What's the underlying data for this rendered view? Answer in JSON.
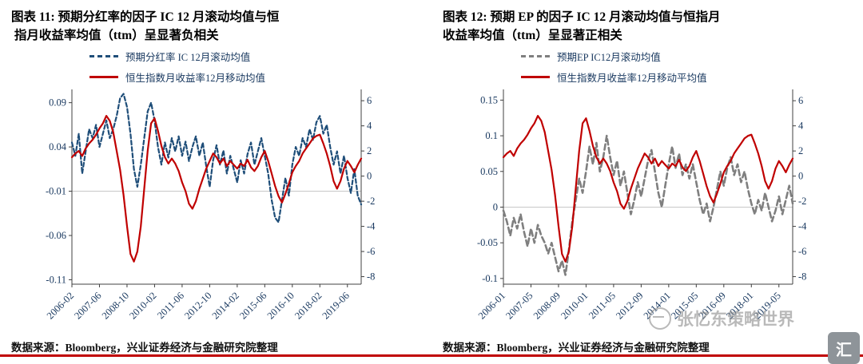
{
  "page": {
    "background": "#ffffff",
    "rule_color": "#c00000"
  },
  "watermark": {
    "text": "张忆东策略世界"
  },
  "logo": {
    "glyph": "汇"
  },
  "chart_data": [
    {
      "type": "line",
      "title": "图表 11: 预期分红率的因子 IC 12 月滚动均值与恒\n 指月收益率均值（ttm）呈显著负相关",
      "source": "数据来源：Bloomberg，兴业证券经济与金融研究院整理",
      "x_tick_labels": [
        "2006-02",
        "2007-06",
        "2008-10",
        "2010-02",
        "2011-06",
        "2012-10",
        "2014-02",
        "2015-06",
        "2016-10",
        "2018-02",
        "2019-06"
      ],
      "x_tick_every": 8,
      "left_axis": {
        "min": -0.115,
        "max": 0.105,
        "ticks": [
          "0.09",
          "0.04",
          "-0.01",
          "-0.06",
          "-0.11"
        ]
      },
      "right_axis": {
        "min": -8.6,
        "max": 6.9,
        "ticks": [
          "6",
          "4",
          "2",
          "0",
          "-2",
          "-4",
          "-6",
          "-8"
        ]
      },
      "baseline_left": -0.01,
      "legend_position": "top",
      "grid": "single-horizontal",
      "series": [
        {
          "name": "预期分红率 IC 12月滚动均值",
          "axis": "left",
          "color": "#1f4e79",
          "dash": "5 3",
          "width": 2.2,
          "values": [
            0.045,
            0.03,
            0.055,
            0.01,
            0.035,
            0.06,
            0.05,
            0.065,
            0.04,
            0.055,
            0.07,
            0.05,
            0.06,
            0.075,
            0.095,
            0.1,
            0.085,
            0.055,
            0.015,
            -0.005,
            0.02,
            0.05,
            0.08,
            0.09,
            0.07,
            0.04,
            0.02,
            0.045,
            0.028,
            0.05,
            0.035,
            0.052,
            0.03,
            0.046,
            0.024,
            0.04,
            0.052,
            0.03,
            0.045,
            0.018,
            -0.005,
            0.025,
            0.042,
            0.02,
            0.036,
            0.01,
            0.03,
            0.015,
            0.0,
            0.025,
            0.01,
            0.032,
            0.045,
            0.02,
            0.035,
            0.05,
            0.03,
            0.01,
            -0.02,
            -0.04,
            -0.045,
            -0.02,
            0.005,
            -0.015,
            0.02,
            0.04,
            0.03,
            0.05,
            0.04,
            0.06,
            0.048,
            0.068,
            0.075,
            0.055,
            0.065,
            0.04,
            0.02,
            0.035,
            0.01,
            0.03,
            0.005,
            -0.012,
            0.015,
            -0.015,
            -0.025
          ]
        },
        {
          "name": "恒生指数月收益率12月移动均值",
          "axis": "right",
          "color": "#c00000",
          "dash": "",
          "width": 2.2,
          "values": [
            1.5,
            1.8,
            2.0,
            1.6,
            2.2,
            2.6,
            2.9,
            3.3,
            3.8,
            4.2,
            4.8,
            4.4,
            3.5,
            2.0,
            0.5,
            -1.5,
            -4.0,
            -6.2,
            -6.8,
            -6.0,
            -4.0,
            -1.0,
            2.0,
            4.2,
            4.6,
            3.6,
            2.4,
            1.5,
            1.0,
            1.4,
            1.0,
            0.4,
            -0.5,
            -1.2,
            -2.2,
            -2.6,
            -2.0,
            -1.0,
            -0.2,
            0.6,
            1.2,
            1.8,
            1.5,
            1.0,
            1.4,
            0.8,
            1.2,
            0.9,
            0.6,
            1.0,
            0.8,
            1.3,
            0.7,
            0.4,
            0.8,
            1.5,
            2.0,
            1.2,
            0.2,
            -0.8,
            -1.6,
            -2.1,
            -1.4,
            -0.6,
            0.3,
            0.8,
            1.2,
            1.8,
            2.2,
            2.6,
            3.0,
            3.2,
            3.3,
            2.6,
            1.8,
            0.8,
            -0.4,
            -1.0,
            -0.4,
            0.6,
            1.2,
            0.8,
            0.3,
            0.9,
            1.4
          ]
        }
      ]
    },
    {
      "type": "line",
      "title": "图表 12: 预期 EP 的因子 IC 12 月滚动均值与恒指月\n收益率均值（ttm）呈显著正相关",
      "source": "数据来源：Bloomberg，兴业证券经济与金融研究院整理",
      "x_tick_labels": [
        "2006-01",
        "2007-05",
        "2008-09",
        "2010-01",
        "2011-05",
        "2012-09",
        "2014-01",
        "2015-05",
        "2016-09",
        "2018-01",
        "2019-05"
      ],
      "x_tick_every": 8,
      "left_axis": {
        "min": -0.108,
        "max": 0.165,
        "ticks": [
          "0.15",
          "0.1",
          "0.05",
          "0",
          "-0.05",
          "-0.1"
        ]
      },
      "right_axis": {
        "min": -8.6,
        "max": 6.9,
        "ticks": [
          "6",
          "4",
          "2",
          "0",
          "-2",
          "-4",
          "-6",
          "-8"
        ]
      },
      "baseline_left": 0,
      "legend_position": "top",
      "grid": "single-horizontal",
      "series": [
        {
          "name": "预期EP IC12月滚动均值",
          "axis": "left",
          "color": "#7f7f7f",
          "dash": "7 4",
          "width": 2.6,
          "values": [
            -0.005,
            -0.02,
            -0.04,
            -0.015,
            -0.03,
            -0.01,
            -0.035,
            -0.055,
            -0.03,
            -0.05,
            -0.025,
            -0.04,
            -0.05,
            -0.065,
            -0.05,
            -0.07,
            -0.09,
            -0.075,
            -0.095,
            -0.06,
            -0.02,
            0.01,
            0.04,
            0.02,
            0.05,
            0.085,
            0.06,
            0.09,
            0.05,
            0.07,
            0.1,
            0.07,
            0.045,
            0.065,
            0.03,
            0.05,
            0.02,
            -0.01,
            0.01,
            0.035,
            0.015,
            0.04,
            0.065,
            0.08,
            0.05,
            0.02,
            0.0,
            0.03,
            0.06,
            0.085,
            0.055,
            0.075,
            0.045,
            0.06,
            0.04,
            0.06,
            0.035,
            0.01,
            -0.01,
            0.005,
            -0.02,
            0.0,
            0.025,
            0.05,
            0.03,
            0.055,
            0.07,
            0.045,
            0.06,
            0.035,
            0.05,
            0.025,
            0.005,
            -0.01,
            0.01,
            -0.005,
            0.02,
            0.0,
            -0.02,
            -0.005,
            0.015,
            -0.01,
            0.01,
            0.03,
            0.005
          ]
        },
        {
          "name": "恒生指数月收益率12月移动平均值",
          "axis": "right",
          "color": "#c00000",
          "dash": "",
          "width": 2.2,
          "values": [
            1.5,
            1.8,
            2.0,
            1.6,
            2.2,
            2.6,
            2.9,
            3.3,
            3.8,
            4.2,
            4.8,
            4.4,
            3.5,
            2.0,
            0.5,
            -1.5,
            -4.0,
            -6.2,
            -6.8,
            -6.0,
            -4.0,
            -1.0,
            2.0,
            4.2,
            4.6,
            3.6,
            2.4,
            1.5,
            1.0,
            1.4,
            1.0,
            0.4,
            -0.5,
            -1.2,
            -2.2,
            -2.6,
            -2.0,
            -1.0,
            -0.2,
            0.6,
            1.2,
            1.8,
            1.5,
            1.0,
            1.4,
            0.8,
            1.2,
            0.9,
            0.6,
            1.0,
            0.8,
            1.3,
            0.7,
            0.4,
            0.8,
            1.5,
            2.0,
            1.2,
            0.2,
            -0.8,
            -1.6,
            -2.1,
            -1.4,
            -0.6,
            0.3,
            0.8,
            1.2,
            1.8,
            2.2,
            2.6,
            3.0,
            3.2,
            3.3,
            2.6,
            1.8,
            0.8,
            -0.4,
            -1.0,
            -0.4,
            0.6,
            1.2,
            0.8,
            0.3,
            0.9,
            1.4
          ]
        }
      ]
    }
  ]
}
